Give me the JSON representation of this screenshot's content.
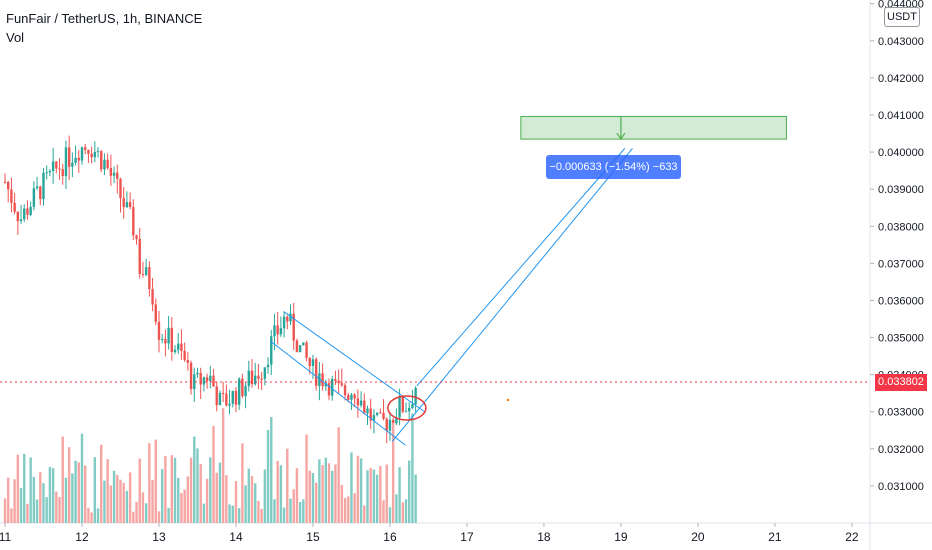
{
  "header": {
    "title": "FunFair / TetherUS, 1h, BINANCE",
    "indicator": "Vol"
  },
  "currency_badge": "USDT",
  "last_price_tag": "0.033802",
  "measure_label": "−0.000633 (−1.54%) −633",
  "colors": {
    "up": "#26a69a",
    "down": "#ef5350",
    "vol_up": "#80cbc4",
    "vol_down": "#f6a5a3",
    "tool_blue": "#2196f3",
    "target_green": "#4caf50",
    "target_fill": "#c8e6c9",
    "price_line": "#f23645",
    "ellipse": "#e53935"
  },
  "chart_data": {
    "type": "candlestick",
    "title": "FunFair / TetherUS, 1h, BINANCE",
    "xlabel": "",
    "ylabel": "",
    "x_ticks": [
      "11",
      "12",
      "13",
      "14",
      "15",
      "16",
      "17",
      "18",
      "19",
      "20",
      "21",
      "22"
    ],
    "y_ticks": [
      "0.031000",
      "0.032000",
      "0.033000",
      "0.034000",
      "0.035000",
      "0.036000",
      "0.037000",
      "0.038000",
      "0.039000",
      "0.040000",
      "0.041000",
      "0.042000",
      "0.043000",
      "0.044000"
    ],
    "ylim": [
      0.03,
      0.0441
    ],
    "xlim": [
      11,
      22.3
    ],
    "last_price": 0.033802,
    "price_path": [
      {
        "x": 11.0,
        "y": 0.0392
      },
      {
        "x": 11.2,
        "y": 0.0382
      },
      {
        "x": 11.45,
        "y": 0.039
      },
      {
        "x": 11.7,
        "y": 0.0396
      },
      {
        "x": 11.95,
        "y": 0.0401
      },
      {
        "x": 12.1,
        "y": 0.0402
      },
      {
        "x": 12.3,
        "y": 0.0397
      },
      {
        "x": 12.5,
        "y": 0.0388
      },
      {
        "x": 12.7,
        "y": 0.0378
      },
      {
        "x": 12.75,
        "y": 0.0369
      },
      {
        "x": 12.9,
        "y": 0.0364
      },
      {
        "x": 13.0,
        "y": 0.0352
      },
      {
        "x": 13.2,
        "y": 0.0348
      },
      {
        "x": 13.35,
        "y": 0.0343
      },
      {
        "x": 13.45,
        "y": 0.0337
      },
      {
        "x": 13.65,
        "y": 0.034
      },
      {
        "x": 13.8,
        "y": 0.0332
      },
      {
        "x": 13.95,
        "y": 0.0334
      },
      {
        "x": 14.15,
        "y": 0.0338
      },
      {
        "x": 14.35,
        "y": 0.0342
      },
      {
        "x": 14.45,
        "y": 0.0348
      },
      {
        "x": 14.65,
        "y": 0.0356
      },
      {
        "x": 14.85,
        "y": 0.0346
      },
      {
        "x": 15.0,
        "y": 0.0341
      },
      {
        "x": 15.2,
        "y": 0.0338
      },
      {
        "x": 15.35,
        "y": 0.0335
      },
      {
        "x": 15.55,
        "y": 0.0336
      },
      {
        "x": 15.7,
        "y": 0.033
      },
      {
        "x": 15.85,
        "y": 0.0326
      },
      {
        "x": 16.0,
        "y": 0.0328
      },
      {
        "x": 16.1,
        "y": 0.0331
      },
      {
        "x": 16.25,
        "y": 0.0332
      },
      {
        "x": 16.35,
        "y": 0.0338
      }
    ],
    "annotations": {
      "descending_channel": {
        "upper": [
          [
            14.62,
            0.0357
          ],
          [
            16.45,
            0.033
          ]
        ],
        "lower": [
          [
            14.45,
            0.0349
          ],
          [
            16.2,
            0.0321
          ]
        ]
      },
      "projection_channel": {
        "upper": [
          [
            16.35,
            0.0337
          ],
          [
            19.05,
            0.0401
          ]
        ],
        "lower": [
          [
            16.03,
            0.0322
          ],
          [
            19.15,
            0.0401
          ]
        ]
      },
      "target_zone": {
        "x": [
          17.7,
          21.15
        ],
        "y": [
          0.04035,
          0.04096
        ]
      },
      "target_arrow": {
        "x": 19.0,
        "from": 0.04096,
        "to": 0.04035
      },
      "highlight_ellipse": {
        "x": 16.22,
        "y": 0.0331
      },
      "measure": {
        "text": "−0.000633 (−1.54%) −633",
        "x": 19.0,
        "y": 0.04
      }
    }
  }
}
